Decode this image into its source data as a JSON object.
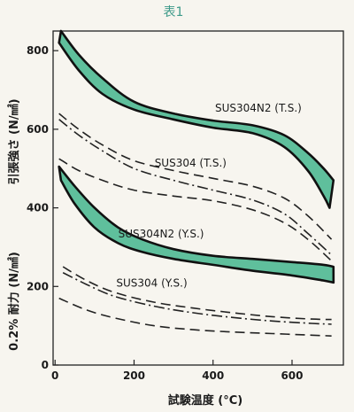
{
  "chart_data": {
    "type": "area",
    "title": "表1",
    "xlabel": "試験温度 (°C)",
    "ylabel_top": "引張強さ (N/㎟)",
    "ylabel_bottom": "0.2% 耐力 (N/㎟)",
    "xlim": [
      -5,
      730
    ],
    "ylim": [
      0,
      850
    ],
    "xticks": [
      0,
      200,
      400,
      600
    ],
    "yticks": [
      0,
      200,
      400,
      600,
      800
    ],
    "colors": {
      "band_fill": "#5fbf9c",
      "band_stroke": "#111111",
      "line": "#222222"
    },
    "bands": [
      {
        "name": "SUS304N2 (T.S.)",
        "upper": [
          [
            15,
            850
          ],
          [
            60,
            790
          ],
          [
            120,
            730
          ],
          [
            200,
            670
          ],
          [
            300,
            640
          ],
          [
            400,
            622
          ],
          [
            500,
            610
          ],
          [
            580,
            585
          ],
          [
            640,
            540
          ],
          [
            680,
            500
          ],
          [
            705,
            470
          ]
        ],
        "lower": [
          [
            10,
            820
          ],
          [
            60,
            750
          ],
          [
            120,
            690
          ],
          [
            200,
            650
          ],
          [
            300,
            625
          ],
          [
            400,
            604
          ],
          [
            500,
            590
          ],
          [
            580,
            555
          ],
          [
            640,
            495
          ],
          [
            680,
            430
          ],
          [
            695,
            400
          ]
        ]
      },
      {
        "name": "SUS304N2 (Y.S.)",
        "upper": [
          [
            10,
            505
          ],
          [
            50,
            455
          ],
          [
            100,
            400
          ],
          [
            160,
            350
          ],
          [
            220,
            320
          ],
          [
            300,
            295
          ],
          [
            400,
            278
          ],
          [
            500,
            270
          ],
          [
            600,
            262
          ],
          [
            680,
            255
          ],
          [
            705,
            250
          ]
        ],
        "lower": [
          [
            15,
            470
          ],
          [
            50,
            410
          ],
          [
            100,
            350
          ],
          [
            160,
            310
          ],
          [
            220,
            288
          ],
          [
            300,
            270
          ],
          [
            400,
            255
          ],
          [
            500,
            240
          ],
          [
            600,
            228
          ],
          [
            680,
            215
          ],
          [
            705,
            210
          ]
        ]
      }
    ],
    "series": [
      {
        "name": "SUS304 (T.S.) upper",
        "style": "long-dash",
        "points": [
          [
            10,
            640
          ],
          [
            60,
            600
          ],
          [
            120,
            560
          ],
          [
            200,
            520
          ],
          [
            300,
            495
          ],
          [
            400,
            475
          ],
          [
            500,
            455
          ],
          [
            580,
            425
          ],
          [
            640,
            380
          ],
          [
            700,
            320
          ]
        ]
      },
      {
        "name": "SUS304 (T.S.) mid",
        "style": "dash-dot",
        "points": [
          [
            10,
            625
          ],
          [
            60,
            585
          ],
          [
            120,
            545
          ],
          [
            200,
            500
          ],
          [
            300,
            470
          ],
          [
            400,
            445
          ],
          [
            500,
            420
          ],
          [
            580,
            385
          ],
          [
            640,
            335
          ],
          [
            700,
            280
          ]
        ]
      },
      {
        "name": "SUS304 (T.S.) lower",
        "style": "long-dash",
        "points": [
          [
            10,
            525
          ],
          [
            60,
            495
          ],
          [
            120,
            470
          ],
          [
            200,
            445
          ],
          [
            300,
            430
          ],
          [
            400,
            418
          ],
          [
            500,
            395
          ],
          [
            580,
            362
          ],
          [
            640,
            320
          ],
          [
            700,
            265
          ]
        ]
      },
      {
        "name": "SUS304 (Y.S.) upper",
        "style": "long-dash",
        "points": [
          [
            20,
            250
          ],
          [
            80,
            215
          ],
          [
            150,
            185
          ],
          [
            250,
            160
          ],
          [
            350,
            145
          ],
          [
            450,
            133
          ],
          [
            550,
            123
          ],
          [
            650,
            117
          ],
          [
            700,
            116
          ]
        ]
      },
      {
        "name": "SUS304 (Y.S.) mid",
        "style": "dash-dot",
        "points": [
          [
            20,
            235
          ],
          [
            80,
            205
          ],
          [
            150,
            175
          ],
          [
            250,
            150
          ],
          [
            350,
            133
          ],
          [
            450,
            121
          ],
          [
            550,
            112
          ],
          [
            650,
            106
          ],
          [
            700,
            104
          ]
        ]
      },
      {
        "name": "SUS304 (Y.S.) lower",
        "style": "long-dash",
        "points": [
          [
            10,
            170
          ],
          [
            80,
            140
          ],
          [
            150,
            120
          ],
          [
            250,
            100
          ],
          [
            350,
            90
          ],
          [
            450,
            84
          ],
          [
            550,
            80
          ],
          [
            650,
            76
          ],
          [
            700,
            74
          ]
        ]
      }
    ],
    "annotations": [
      {
        "text": "SUS304N2 (T.S.)",
        "x": 405,
        "y": 645
      },
      {
        "text": "SUS304 (T.S.)",
        "x": 252,
        "y": 505
      },
      {
        "text": "SUS304N2 (Y.S.)",
        "x": 160,
        "y": 325
      },
      {
        "text": "SUS304 (Y.S.)",
        "x": 155,
        "y": 200
      }
    ]
  }
}
